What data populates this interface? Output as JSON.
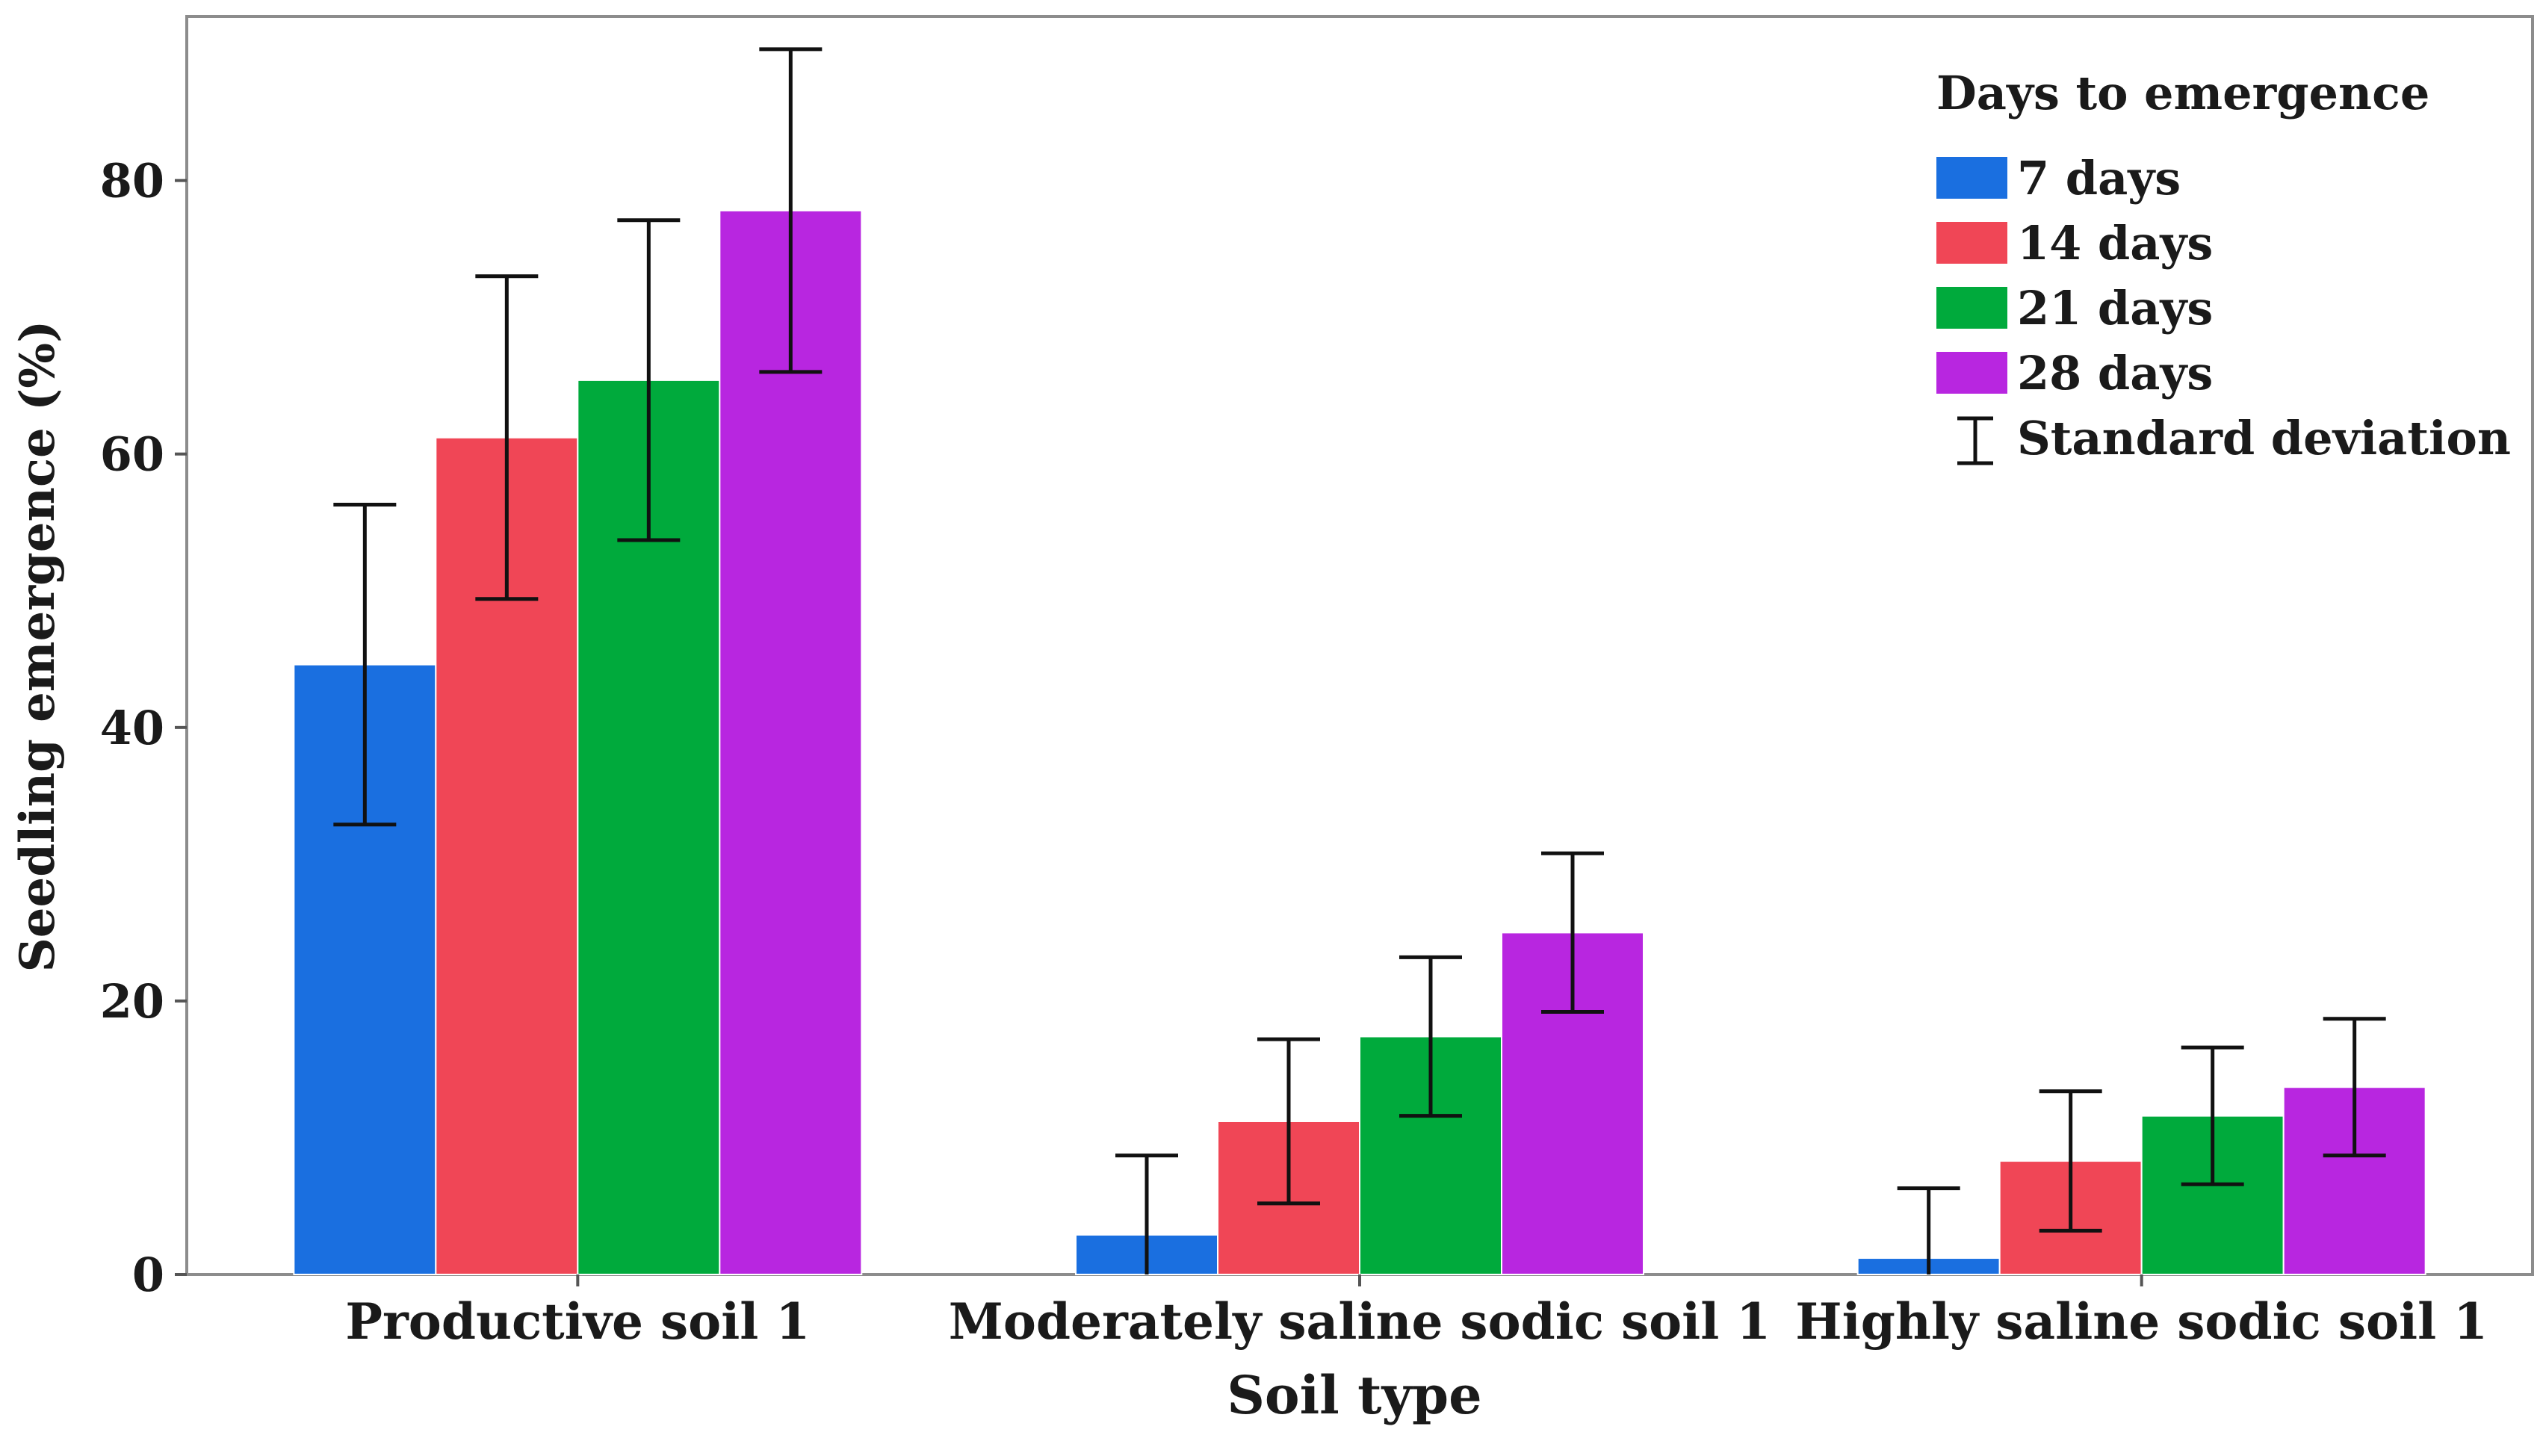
{
  "chart_data": {
    "type": "bar",
    "title": "",
    "xlabel": "Soil type",
    "ylabel": "Seedling emergence (%)",
    "ylim": [
      0,
      92
    ],
    "yticks": [
      0,
      20,
      40,
      60,
      80
    ],
    "grid": false,
    "legend_position": "top-right",
    "legend_title": "Days to emergence",
    "error_bar_label": "Standard deviation",
    "categories": [
      "Productive soil 1",
      "Moderately saline sodic soil 1",
      "Highly saline sodic soil 1"
    ],
    "series": [
      {
        "name": "7 days",
        "color": "#1a6fe0",
        "values": [
          44.6,
          2.9,
          1.2
        ],
        "sd": [
          11.7,
          5.8,
          5.1
        ]
      },
      {
        "name": "14 days",
        "color": "#f04656",
        "values": [
          61.2,
          11.2,
          8.3
        ],
        "sd": [
          11.8,
          6.0,
          5.1
        ]
      },
      {
        "name": "21 days",
        "color": "#00aa3c",
        "values": [
          65.4,
          17.4,
          11.6
        ],
        "sd": [
          11.7,
          5.8,
          5.0
        ]
      },
      {
        "name": "28 days",
        "color": "#b826e0",
        "values": [
          77.8,
          25.0,
          13.7
        ],
        "sd": [
          11.8,
          5.8,
          5.0
        ]
      }
    ]
  }
}
